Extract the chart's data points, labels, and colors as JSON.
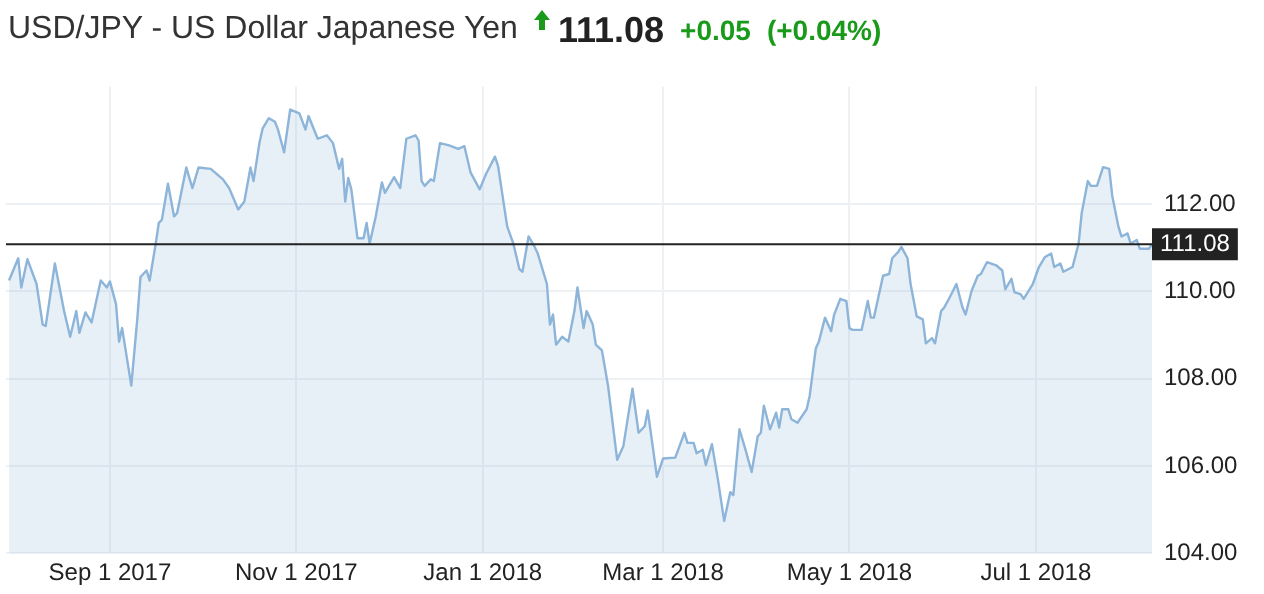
{
  "chart_data": {
    "type": "area",
    "title": "USD/JPY - US Dollar Japanese Yen",
    "annotations": [
      "111.08",
      "+0.05",
      "(+0.04%)"
    ],
    "grid": true,
    "marker": "none",
    "legend": false,
    "xlim": [
      "2017-07-29",
      "2018-08-08"
    ],
    "xticks": [
      {
        "value": "2017-09-01",
        "label": "Sep 1 2017"
      },
      {
        "value": "2017-11-01",
        "label": "Nov 1 2017"
      },
      {
        "value": "2018-01-01",
        "label": "Jan 1 2018"
      },
      {
        "value": "2018-03-01",
        "label": "Mar 1 2018"
      },
      {
        "value": "2018-05-01",
        "label": "May 1 2018"
      },
      {
        "value": "2018-07-01",
        "label": "Jul 1 2018"
      }
    ],
    "ylim": [
      104,
      114.7
    ],
    "yticks": [
      {
        "value": 104,
        "label": "104.00"
      },
      {
        "value": 106,
        "label": "106.00"
      },
      {
        "value": 108,
        "label": "108.00"
      },
      {
        "value": 110,
        "label": "110.00"
      },
      {
        "value": 112,
        "label": "112.00"
      }
    ],
    "ref_lines": [
      {
        "axis": "y",
        "value": 111.08,
        "label": "111.08",
        "color": "#222222"
      }
    ],
    "x": [
      "2017-07-30",
      "2017-08-02",
      "2017-08-03",
      "2017-08-05",
      "2017-08-08",
      "2017-08-10",
      "2017-08-11",
      "2017-08-14",
      "2017-08-17",
      "2017-08-19",
      "2017-08-21",
      "2017-08-22",
      "2017-08-24",
      "2017-08-26",
      "2017-08-29",
      "2017-08-31",
      "2017-09-01",
      "2017-09-03",
      "2017-09-04",
      "2017-09-05",
      "2017-09-08",
      "2017-09-10",
      "2017-09-11",
      "2017-09-13",
      "2017-09-14",
      "2017-09-16",
      "2017-09-17",
      "2017-09-18",
      "2017-09-20",
      "2017-09-22",
      "2017-09-23",
      "2017-09-26",
      "2017-09-28",
      "2017-09-30",
      "2017-10-04",
      "2017-10-08",
      "2017-10-10",
      "2017-10-13",
      "2017-10-15",
      "2017-10-17",
      "2017-10-18",
      "2017-10-20",
      "2017-10-21",
      "2017-10-23",
      "2017-10-25",
      "2017-10-26",
      "2017-10-28",
      "2017-10-30",
      "2017-11-02",
      "2017-11-04",
      "2017-11-05",
      "2017-11-08",
      "2017-11-11",
      "2017-11-13",
      "2017-11-15",
      "2017-11-16",
      "2017-11-17",
      "2017-11-18",
      "2017-11-19",
      "2017-11-21",
      "2017-11-23",
      "2017-11-24",
      "2017-11-25",
      "2017-11-27",
      "2017-11-29",
      "2017-11-30",
      "2017-12-03",
      "2017-12-05",
      "2017-12-07",
      "2017-12-10",
      "2017-12-11",
      "2017-12-12",
      "2017-12-13",
      "2017-12-15",
      "2017-12-16",
      "2017-12-18",
      "2017-12-21",
      "2017-12-24",
      "2017-12-26",
      "2017-12-28",
      "2017-12-31",
      "2018-01-02",
      "2018-01-05",
      "2018-01-06",
      "2018-01-09",
      "2018-01-11",
      "2018-01-13",
      "2018-01-14",
      "2018-01-16",
      "2018-01-18",
      "2018-01-19",
      "2018-01-22",
      "2018-01-23",
      "2018-01-24",
      "2018-01-25",
      "2018-01-27",
      "2018-01-29",
      "2018-01-31",
      "2018-02-01",
      "2018-02-03",
      "2018-02-04",
      "2018-02-06",
      "2018-02-07",
      "2018-02-09",
      "2018-02-11",
      "2018-02-14",
      "2018-02-16",
      "2018-02-19",
      "2018-02-21",
      "2018-02-23",
      "2018-02-24",
      "2018-02-27",
      "2018-03-01",
      "2018-03-05",
      "2018-03-08",
      "2018-03-09",
      "2018-03-11",
      "2018-03-12",
      "2018-03-14",
      "2018-03-15",
      "2018-03-17",
      "2018-03-19",
      "2018-03-21",
      "2018-03-23",
      "2018-03-24",
      "2018-03-26",
      "2018-03-28",
      "2018-03-30",
      "2018-04-01",
      "2018-04-02",
      "2018-04-03",
      "2018-04-05",
      "2018-04-07",
      "2018-04-08",
      "2018-04-09",
      "2018-04-11",
      "2018-04-12",
      "2018-04-14",
      "2018-04-17",
      "2018-04-18",
      "2018-04-20",
      "2018-04-21",
      "2018-04-23",
      "2018-04-25",
      "2018-04-26",
      "2018-04-28",
      "2018-04-30",
      "2018-05-01",
      "2018-05-02",
      "2018-05-05",
      "2018-05-07",
      "2018-05-08",
      "2018-05-09",
      "2018-05-12",
      "2018-05-14",
      "2018-05-15",
      "2018-05-17",
      "2018-05-18",
      "2018-05-20",
      "2018-05-21",
      "2018-05-23",
      "2018-05-25",
      "2018-05-26",
      "2018-05-28",
      "2018-05-29",
      "2018-05-31",
      "2018-06-01",
      "2018-06-03",
      "2018-06-05",
      "2018-06-07",
      "2018-06-08",
      "2018-06-10",
      "2018-06-12",
      "2018-06-13",
      "2018-06-15",
      "2018-06-18",
      "2018-06-20",
      "2018-06-21",
      "2018-06-23",
      "2018-06-24",
      "2018-06-26",
      "2018-06-27",
      "2018-06-30",
      "2018-07-02",
      "2018-07-04",
      "2018-07-06",
      "2018-07-07",
      "2018-07-09",
      "2018-07-10",
      "2018-07-13",
      "2018-07-15",
      "2018-07-16",
      "2018-07-18",
      "2018-07-19",
      "2018-07-21",
      "2018-07-23",
      "2018-07-25",
      "2018-07-26",
      "2018-07-28",
      "2018-07-29",
      "2018-07-31",
      "2018-08-01",
      "2018-08-03",
      "2018-08-04",
      "2018-08-07",
      "2018-08-08"
    ],
    "series": [
      {
        "color": "#8db4d9",
        "values": [
          110.25,
          110.76,
          110.09,
          110.74,
          110.17,
          109.24,
          109.21,
          110.64,
          109.55,
          108.96,
          109.55,
          109.05,
          109.52,
          109.29,
          110.25,
          110.09,
          110.23,
          109.71,
          108.85,
          109.16,
          107.84,
          109.4,
          110.33,
          110.48,
          110.25,
          111.1,
          111.57,
          111.64,
          112.47,
          111.72,
          111.8,
          112.84,
          112.37,
          112.84,
          112.81,
          112.57,
          112.37,
          111.88,
          112.06,
          112.84,
          112.53,
          113.43,
          113.74,
          113.97,
          113.89,
          113.71,
          113.19,
          114.17,
          114.08,
          113.71,
          114.02,
          113.5,
          113.58,
          113.4,
          112.81,
          113.04,
          112.06,
          112.6,
          112.34,
          111.22,
          111.22,
          111.57,
          111.1,
          111.72,
          112.5,
          112.26,
          112.62,
          112.37,
          113.5,
          113.58,
          113.46,
          112.53,
          112.42,
          112.57,
          112.53,
          113.4,
          113.35,
          113.27,
          113.33,
          112.73,
          112.34,
          112.68,
          113.09,
          112.88,
          111.49,
          111.1,
          110.51,
          110.45,
          111.26,
          111.02,
          110.87,
          110.17,
          109.24,
          109.47,
          108.78,
          108.96,
          108.85,
          109.55,
          110.09,
          109.16,
          109.55,
          109.24,
          108.78,
          108.65,
          107.84,
          106.14,
          106.45,
          107.77,
          106.76,
          106.91,
          107.27,
          105.75,
          106.17,
          106.19,
          106.76,
          106.53,
          106.53,
          106.29,
          106.37,
          106.02,
          106.5,
          105.67,
          104.74,
          105.4,
          105.33,
          106.84,
          106.37,
          105.86,
          106.68,
          106.76,
          107.38,
          106.84,
          107.22,
          106.88,
          107.3,
          107.3,
          107.07,
          106.99,
          107.3,
          107.61,
          108.7,
          108.85,
          109.4,
          109.09,
          109.47,
          109.83,
          109.78,
          109.16,
          109.12,
          109.12,
          109.78,
          109.4,
          109.4,
          110.36,
          110.4,
          110.76,
          110.91,
          111.02,
          110.76,
          110.17,
          109.43,
          109.36,
          108.81,
          108.93,
          108.81,
          109.55,
          109.63,
          109.89,
          110.17,
          109.63,
          109.47,
          110.02,
          110.36,
          110.4,
          110.67,
          110.6,
          110.48,
          110.05,
          110.29,
          109.98,
          109.94,
          109.83,
          110.17,
          110.56,
          110.79,
          110.87,
          110.56,
          110.64,
          110.45,
          110.56,
          111.1,
          111.8,
          112.53,
          112.42,
          112.42,
          112.85,
          112.81,
          112.19,
          111.49,
          111.26,
          111.33,
          111.1,
          111.18,
          110.98,
          110.98,
          111.08
        ]
      }
    ]
  }
}
